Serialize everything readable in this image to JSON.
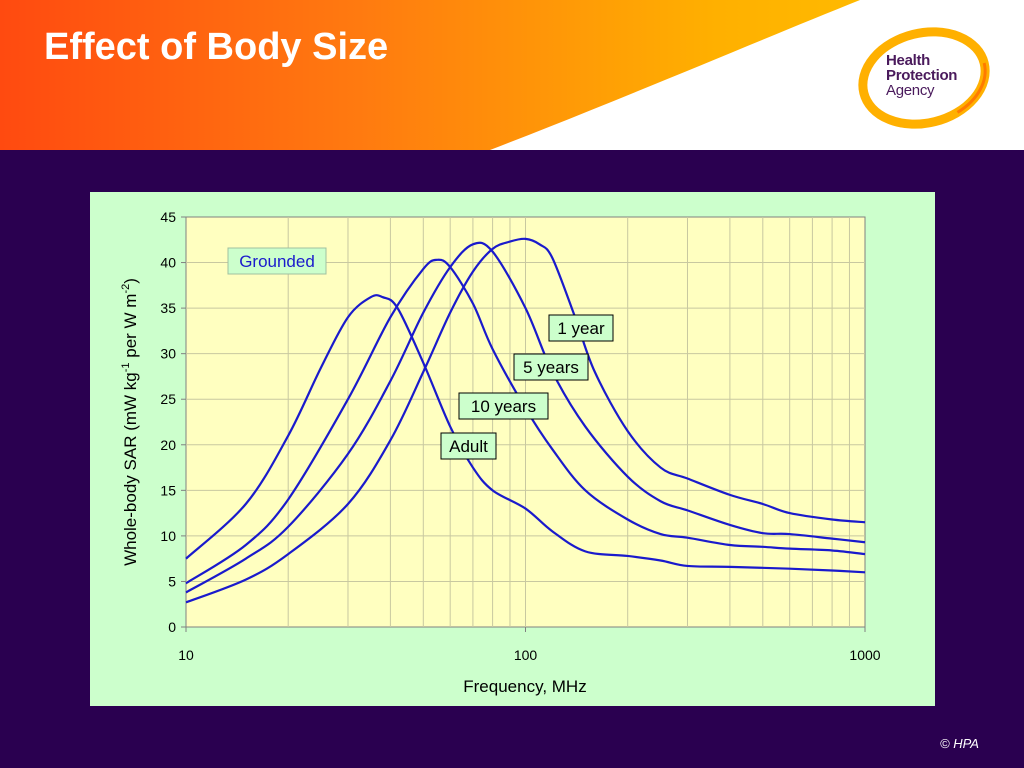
{
  "slide": {
    "title": "Effect of Body Size",
    "logo_lines": [
      "Health",
      "Protection",
      "Agency"
    ],
    "copyright": "© HPA"
  },
  "colors": {
    "background": "#2a0050",
    "plot_area": "#ffffc0",
    "chart_area": "#ccffcc",
    "series_line": "#1a1acc",
    "header_orange": "#ff4a10",
    "header_yellow": "#ffc400"
  },
  "chart_data": {
    "type": "line",
    "xlabel": "Frequency, MHz",
    "ylabel_parts": [
      "Whole-body SAR (mW kg",
      "-1",
      " per  W m",
      "-2",
      ")"
    ],
    "x_scale": "log",
    "xlim": [
      10,
      1000
    ],
    "ylim": [
      0,
      45
    ],
    "x_ticks": [
      10,
      100,
      1000
    ],
    "y_ticks": [
      0,
      5,
      10,
      15,
      20,
      25,
      30,
      35,
      40,
      45
    ],
    "grid": true,
    "annotation": "Grounded",
    "series": [
      {
        "name": "1 year",
        "points": [
          [
            10,
            2.7
          ],
          [
            15,
            5.2
          ],
          [
            20,
            8
          ],
          [
            30,
            13.5
          ],
          [
            40,
            20.5
          ],
          [
            50,
            28
          ],
          [
            60,
            34.5
          ],
          [
            70,
            39
          ],
          [
            80,
            41.5
          ],
          [
            90,
            42.3
          ],
          [
            100,
            42.6
          ],
          [
            110,
            42
          ],
          [
            120,
            40.5
          ],
          [
            140,
            34
          ],
          [
            160,
            28
          ],
          [
            200,
            21.5
          ],
          [
            250,
            17.5
          ],
          [
            300,
            16.3
          ],
          [
            400,
            14.5
          ],
          [
            500,
            13.5
          ],
          [
            600,
            12.5
          ],
          [
            800,
            11.8
          ],
          [
            1000,
            11.5
          ]
        ]
      },
      {
        "name": "5 years",
        "points": [
          [
            10,
            3.8
          ],
          [
            15,
            7.5
          ],
          [
            20,
            11
          ],
          [
            30,
            19
          ],
          [
            40,
            27
          ],
          [
            50,
            34.5
          ],
          [
            60,
            39.5
          ],
          [
            70,
            42
          ],
          [
            80,
            41.2
          ],
          [
            100,
            35
          ],
          [
            120,
            28
          ],
          [
            150,
            22
          ],
          [
            200,
            16.5
          ],
          [
            250,
            13.8
          ],
          [
            300,
            12.8
          ],
          [
            400,
            11.2
          ],
          [
            500,
            10.3
          ],
          [
            600,
            10.2
          ],
          [
            800,
            9.7
          ],
          [
            1000,
            9.3
          ]
        ]
      },
      {
        "name": "10 years",
        "points": [
          [
            10,
            4.8
          ],
          [
            15,
            9
          ],
          [
            20,
            14
          ],
          [
            30,
            25
          ],
          [
            40,
            34
          ],
          [
            50,
            39.3
          ],
          [
            55,
            40.3
          ],
          [
            60,
            39.5
          ],
          [
            70,
            35.5
          ],
          [
            80,
            30.5
          ],
          [
            100,
            24
          ],
          [
            120,
            19.5
          ],
          [
            150,
            15
          ],
          [
            200,
            11.8
          ],
          [
            250,
            10.2
          ],
          [
            300,
            9.8
          ],
          [
            400,
            9
          ],
          [
            500,
            8.8
          ],
          [
            600,
            8.6
          ],
          [
            800,
            8.4
          ],
          [
            1000,
            8
          ]
        ]
      },
      {
        "name": "Adult",
        "points": [
          [
            10,
            7.5
          ],
          [
            15,
            13.5
          ],
          [
            20,
            21
          ],
          [
            25,
            28.5
          ],
          [
            30,
            34
          ],
          [
            35,
            36.2
          ],
          [
            38,
            36.2
          ],
          [
            42,
            35
          ],
          [
            50,
            29
          ],
          [
            60,
            22
          ],
          [
            70,
            17.5
          ],
          [
            80,
            15
          ],
          [
            100,
            13
          ],
          [
            120,
            10.5
          ],
          [
            150,
            8.3
          ],
          [
            200,
            7.8
          ],
          [
            250,
            7.3
          ],
          [
            300,
            6.7
          ],
          [
            400,
            6.6
          ],
          [
            600,
            6.4
          ],
          [
            800,
            6.2
          ],
          [
            1000,
            6
          ]
        ]
      }
    ]
  }
}
